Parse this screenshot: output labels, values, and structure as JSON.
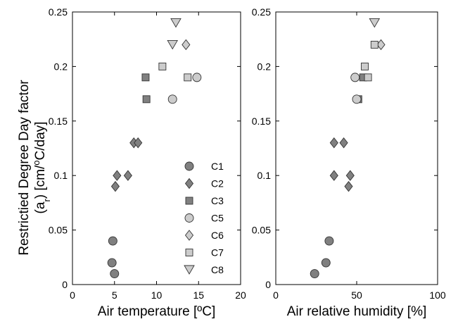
{
  "chart_data": {
    "type": "scatter",
    "ylabel_line1": "Restrictied Degree Day factor",
    "ylabel_line2_parts": [
      "(a",
      "r",
      ") [cm/",
      "o",
      "C/day]"
    ],
    "panels": [
      {
        "name": "left",
        "xlabel": "Air temperature [ºC]",
        "xlim": [
          0,
          20
        ],
        "ylim": [
          0,
          0.25
        ],
        "xticks": [
          "0",
          "5",
          "10",
          "15",
          "20"
        ],
        "yticks": [
          "0",
          "0.05",
          "0.1",
          "0.15",
          "0.2",
          "0.25"
        ],
        "series": [
          {
            "name": "C1",
            "marker": "circle",
            "fill": "#808080",
            "points": [
              [
                4.8,
                0.04
              ],
              [
                4.7,
                0.02
              ],
              [
                5.0,
                0.01
              ]
            ]
          },
          {
            "name": "C2",
            "marker": "diamond",
            "fill": "#808080",
            "points": [
              [
                5.3,
                0.1
              ],
              [
                5.1,
                0.09
              ],
              [
                6.6,
                0.1
              ],
              [
                7.3,
                0.13
              ],
              [
                7.8,
                0.13
              ]
            ]
          },
          {
            "name": "C3",
            "marker": "square",
            "fill": "#808080",
            "points": [
              [
                8.7,
                0.19
              ],
              [
                8.8,
                0.17
              ]
            ]
          },
          {
            "name": "C5",
            "marker": "circle",
            "fill": "#cccccc",
            "points": [
              [
                14.8,
                0.19
              ],
              [
                11.9,
                0.17
              ]
            ]
          },
          {
            "name": "C6",
            "marker": "diamond",
            "fill": "#cccccc",
            "points": [
              [
                13.5,
                0.22
              ]
            ]
          },
          {
            "name": "C7",
            "marker": "square",
            "fill": "#cccccc",
            "points": [
              [
                10.7,
                0.2
              ],
              [
                13.7,
                0.19
              ]
            ]
          },
          {
            "name": "C8",
            "marker": "triangle",
            "fill": "#cccccc",
            "points": [
              [
                12.3,
                0.24
              ],
              [
                11.9,
                0.22
              ]
            ]
          }
        ]
      },
      {
        "name": "right",
        "xlabel": "Air relative humidity [%]",
        "xlim": [
          0,
          100
        ],
        "ylim": [
          0,
          0.25
        ],
        "xticks": [
          "0",
          "50",
          "100"
        ],
        "yticks": [
          "0",
          "0.05",
          "0.1",
          "0.15",
          "0.2",
          "0.25"
        ],
        "series": [
          {
            "name": "C1",
            "marker": "circle",
            "fill": "#808080",
            "points": [
              [
                33,
                0.04
              ],
              [
                31,
                0.02
              ],
              [
                24,
                0.01
              ]
            ]
          },
          {
            "name": "C2",
            "marker": "diamond",
            "fill": "#808080",
            "points": [
              [
                36,
                0.13
              ],
              [
                42,
                0.13
              ],
              [
                36,
                0.1
              ],
              [
                46,
                0.1
              ],
              [
                45,
                0.09
              ]
            ]
          },
          {
            "name": "C3",
            "marker": "square",
            "fill": "#808080",
            "points": [
              [
                54,
                0.19
              ],
              [
                51,
                0.17
              ]
            ]
          },
          {
            "name": "C5",
            "marker": "circle",
            "fill": "#cccccc",
            "points": [
              [
                49,
                0.19
              ],
              [
                50,
                0.17
              ]
            ]
          },
          {
            "name": "C6",
            "marker": "diamond",
            "fill": "#cccccc",
            "points": [
              [
                65,
                0.22
              ]
            ]
          },
          {
            "name": "C7",
            "marker": "square",
            "fill": "#cccccc",
            "points": [
              [
                55,
                0.2
              ],
              [
                57,
                0.19
              ],
              [
                61,
                0.22
              ]
            ]
          },
          {
            "name": "C8",
            "marker": "triangle",
            "fill": "#cccccc",
            "points": [
              [
                61,
                0.24
              ]
            ]
          }
        ]
      }
    ],
    "legend": {
      "placement": "lower-right of left panel",
      "entries": [
        {
          "label": "C1",
          "marker": "circle",
          "fill": "#808080"
        },
        {
          "label": "C2",
          "marker": "diamond",
          "fill": "#808080"
        },
        {
          "label": "C3",
          "marker": "square",
          "fill": "#808080"
        },
        {
          "label": "C5",
          "marker": "circle",
          "fill": "#cccccc"
        },
        {
          "label": "C6",
          "marker": "diamond",
          "fill": "#cccccc"
        },
        {
          "label": "C7",
          "marker": "square",
          "fill": "#cccccc"
        },
        {
          "label": "C8",
          "marker": "triangle",
          "fill": "#cccccc"
        }
      ]
    },
    "grid": false
  }
}
